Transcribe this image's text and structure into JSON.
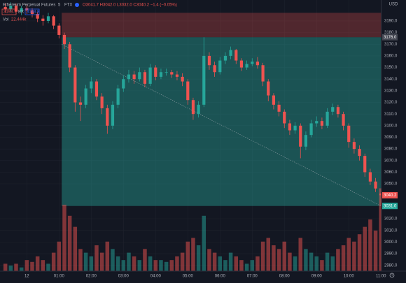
{
  "chart_data": {
    "type": "candlestick",
    "symbol": "Ethereum Perpetual Futures",
    "interval": "5",
    "exchange": "FTX",
    "ohlc_text": "O3041.7 H3042.0 L3032.0 C3040.2 −1.4 (−0.05%)",
    "sell": 3193.7,
    "spread_label": "BX",
    "buy": 3193.8,
    "volume_title": "Vol",
    "volume_text": "22.444k",
    "currency": "USD",
    "up_color": "#26a69a",
    "down_color": "#ef5350",
    "x": [
      -40,
      -30,
      -20,
      -10,
      0,
      10,
      20,
      30,
      40,
      50,
      60,
      70,
      80,
      90,
      100,
      110,
      120,
      130,
      140,
      150,
      160,
      170,
      180,
      190,
      200,
      210,
      220,
      230,
      240,
      250,
      260,
      270,
      280,
      290,
      300,
      310,
      320,
      330,
      340,
      350,
      360,
      370,
      380,
      390,
      400,
      410,
      420,
      430,
      440,
      450,
      460,
      470,
      480,
      490,
      500,
      510,
      520,
      530,
      540,
      550,
      560,
      570,
      580,
      590,
      600,
      610,
      620,
      630,
      640,
      650,
      660
    ],
    "open": [
      3202,
      3200,
      3203,
      3198,
      3201,
      3199,
      3196,
      3192,
      3190,
      3194,
      3186,
      3178,
      3170,
      3150,
      3120,
      3118,
      3132,
      3138,
      3125,
      3115,
      3100,
      3118,
      3132,
      3140,
      3144,
      3140,
      3146,
      3136,
      3150,
      3142,
      3146,
      3146,
      3144,
      3142,
      3138,
      3122,
      3110,
      3118,
      3160,
      3152,
      3146,
      3156,
      3160,
      3165,
      3156,
      3150,
      3153,
      3155,
      3152,
      3138,
      3126,
      3118,
      3112,
      3102,
      3096,
      3100,
      3082,
      3092,
      3102,
      3104,
      3100,
      3112,
      3116,
      3110,
      3100,
      3086,
      3080,
      3074,
      3060,
      3052,
      3041.7
    ],
    "high": [
      3205,
      3206,
      3205,
      3203,
      3204,
      3201,
      3198,
      3195,
      3197,
      3195,
      3188,
      3180,
      3172,
      3152,
      3125,
      3135,
      3142,
      3140,
      3128,
      3118,
      3121,
      3135,
      3143,
      3148,
      3147,
      3150,
      3148,
      3153,
      3152,
      3149,
      3149,
      3148,
      3147,
      3145,
      3140,
      3124,
      3121,
      3176,
      3163,
      3155,
      3159,
      3163,
      3168,
      3166,
      3158,
      3156,
      3158,
      3159,
      3154,
      3140,
      3128,
      3121,
      3114,
      3105,
      3103,
      3102,
      3095,
      3105,
      3108,
      3107,
      3115,
      3119,
      3118,
      3112,
      3102,
      3089,
      3083,
      3076,
      3063,
      3055,
      3042
    ],
    "low": [
      3197,
      3198,
      3196,
      3195,
      3196,
      3193,
      3189,
      3186,
      3188,
      3183,
      3175,
      3166,
      3146,
      3112,
      3104,
      3115,
      3128,
      3122,
      3110,
      3093,
      3097,
      3115,
      3129,
      3137,
      3136,
      3138,
      3133,
      3134,
      3139,
      3140,
      3143,
      3141,
      3139,
      3134,
      3118,
      3105,
      3107,
      3116,
      3148,
      3142,
      3144,
      3153,
      3157,
      3153,
      3147,
      3148,
      3151,
      3149,
      3134,
      3121,
      3114,
      3108,
      3098,
      3092,
      3093,
      3072,
      3079,
      3090,
      3099,
      3097,
      3098,
      3109,
      3107,
      3096,
      3081,
      3076,
      3070,
      3056,
      3049,
      3043,
      3032
    ],
    "close": [
      3200,
      3203,
      3198,
      3201,
      3199,
      3196,
      3192,
      3190,
      3194,
      3186,
      3178,
      3170,
      3150,
      3120,
      3118,
      3132,
      3138,
      3125,
      3115,
      3100,
      3118,
      3132,
      3140,
      3144,
      3140,
      3146,
      3136,
      3150,
      3142,
      3146,
      3146,
      3144,
      3142,
      3138,
      3122,
      3110,
      3118,
      3160,
      3152,
      3146,
      3156,
      3160,
      3165,
      3156,
      3150,
      3153,
      3155,
      3152,
      3138,
      3126,
      3118,
      3112,
      3102,
      3096,
      3100,
      3082,
      3092,
      3102,
      3104,
      3100,
      3112,
      3116,
      3110,
      3100,
      3086,
      3080,
      3074,
      3060,
      3052,
      3046,
      3040.2
    ],
    "volume": [
      2,
      1.5,
      2,
      1,
      3,
      2.5,
      4,
      3,
      2,
      5,
      8,
      18,
      15,
      12,
      6,
      5,
      4,
      7,
      5,
      8,
      6,
      4,
      3,
      5,
      4,
      3,
      6,
      4,
      3,
      3,
      2.5,
      3,
      4,
      5,
      8,
      9,
      7,
      15,
      6,
      5,
      4,
      3,
      5,
      4,
      3,
      2,
      3,
      4,
      8,
      9,
      7,
      6,
      8,
      5,
      4,
      9,
      6,
      5,
      4,
      3,
      5,
      4,
      6,
      7,
      9,
      8,
      10,
      12,
      14,
      11,
      22.444
    ],
    "volume_lim": [
      0,
      25
    ],
    "xlim": [
      -50,
      661
    ],
    "xticks": [
      {
        "value": 0,
        "label": "12"
      },
      {
        "value": 60,
        "label": "01:00"
      },
      {
        "value": 120,
        "label": "02:00"
      },
      {
        "value": 180,
        "label": "03:00"
      },
      {
        "value": 240,
        "label": "04:00"
      },
      {
        "value": 300,
        "label": "05:00"
      },
      {
        "value": 360,
        "label": "06:00"
      },
      {
        "value": 420,
        "label": "07:00"
      },
      {
        "value": 480,
        "label": "08:00"
      },
      {
        "value": 540,
        "label": "09:00"
      },
      {
        "value": 600,
        "label": "10:00"
      },
      {
        "value": 660,
        "label": "11:00"
      }
    ],
    "ylim": [
      2975,
      3208
    ],
    "yticks": [
      {
        "value": 3190,
        "label": "3190.0"
      },
      {
        "value": 3180,
        "label": "3180.0"
      },
      {
        "value": 3170,
        "label": "3170.0"
      },
      {
        "value": 3160,
        "label": "3160.0"
      },
      {
        "value": 3150,
        "label": "3150.0"
      },
      {
        "value": 3140,
        "label": "3140.0"
      },
      {
        "value": 3130,
        "label": "3130.0"
      },
      {
        "value": 3120,
        "label": "3120.0"
      },
      {
        "value": 3110,
        "label": "3110.0"
      },
      {
        "value": 3100,
        "label": "3100.0"
      },
      {
        "value": 3090,
        "label": "3090.0"
      },
      {
        "value": 3080,
        "label": "3080.0"
      },
      {
        "value": 3070,
        "label": "3070.0"
      },
      {
        "value": 3060,
        "label": "3060.0"
      },
      {
        "value": 3050,
        "label": "3050.0"
      },
      {
        "value": 3020,
        "label": "3020.0"
      },
      {
        "value": 3010,
        "label": "3010.0"
      },
      {
        "value": 3000,
        "label": "3000.0"
      },
      {
        "value": 2990,
        "label": "2990.0"
      },
      {
        "value": 2980,
        "label": "2980.0"
      }
    ],
    "grid": true,
    "position_tool": {
      "start": 65,
      "end": 660,
      "entry": 3176,
      "entry_label": "3176.0",
      "stop": 3197,
      "target": 3031,
      "target_label": "3031.0"
    }
  }
}
